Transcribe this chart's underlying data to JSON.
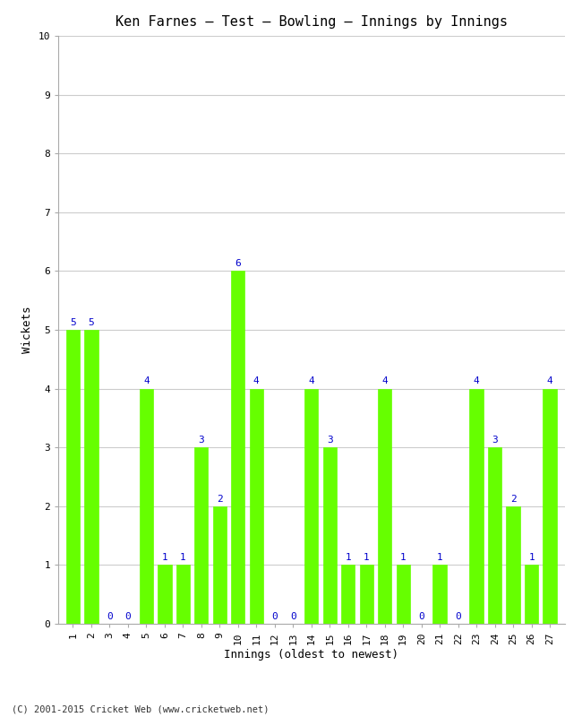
{
  "title": "Ken Farnes – Test – Bowling – Innings by Innings",
  "xlabel": "Innings (oldest to newest)",
  "ylabel": "Wickets",
  "innings": [
    1,
    2,
    3,
    4,
    5,
    6,
    7,
    8,
    9,
    10,
    11,
    12,
    13,
    14,
    15,
    16,
    17,
    18,
    19,
    20,
    21,
    22,
    23,
    24,
    25,
    26,
    27
  ],
  "wickets": [
    5,
    5,
    0,
    0,
    4,
    1,
    1,
    3,
    2,
    6,
    4,
    0,
    0,
    4,
    3,
    1,
    1,
    4,
    1,
    0,
    1,
    0,
    4,
    3,
    2,
    1,
    4
  ],
  "bar_color": "#66ff00",
  "label_color": "#0000cc",
  "ylim": [
    0,
    10
  ],
  "yticks": [
    0,
    1,
    2,
    3,
    4,
    5,
    6,
    7,
    8,
    9,
    10
  ],
  "background_color": "#ffffff",
  "grid_color": "#cccccc",
  "title_fontsize": 11,
  "axis_label_fontsize": 9,
  "tick_fontsize": 8,
  "label_fontsize": 8,
  "footer": "(C) 2001-2015 Cricket Web (www.cricketweb.net)"
}
